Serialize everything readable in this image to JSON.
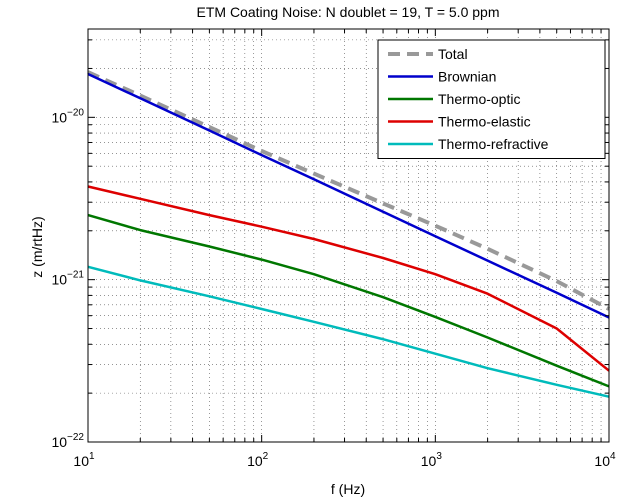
{
  "chart_data": {
    "type": "line",
    "title": "ETM Coating Noise: N doublet = 19, T = 5.0 ppm",
    "xlabel": "f (Hz)",
    "ylabel": "z (m/rtHz)",
    "xscale": "log",
    "yscale": "log",
    "xlim": [
      10,
      10000
    ],
    "ylim": [
      1e-22,
      3.5e-20
    ],
    "grid": true,
    "legend_position": "top-right",
    "x_ticks": [
      {
        "value": 10,
        "base": "10",
        "exp": "1"
      },
      {
        "value": 100,
        "base": "10",
        "exp": "2"
      },
      {
        "value": 1000,
        "base": "10",
        "exp": "3"
      },
      {
        "value": 10000,
        "base": "10",
        "exp": "4"
      }
    ],
    "y_ticks": [
      {
        "value": 1e-22,
        "base": "10",
        "exp": "−22"
      },
      {
        "value": 1e-21,
        "base": "10",
        "exp": "−21"
      },
      {
        "value": 1e-20,
        "base": "10",
        "exp": "−20"
      }
    ],
    "x": [
      10,
      20,
      50,
      100,
      200,
      500,
      1000,
      2000,
      5000,
      10000
    ],
    "series": [
      {
        "name": "Total",
        "color": "#999999",
        "dashed": true,
        "values": [
          1.9e-20,
          1.36e-20,
          8.7e-21,
          6.2e-21,
          4.5e-21,
          2.95e-21,
          2.15e-21,
          1.55e-21,
          9.8e-22,
          6.6e-22
        ]
      },
      {
        "name": "Brownian",
        "color": "#0000cc",
        "dashed": false,
        "values": [
          1.85e-20,
          1.31e-20,
          8.3e-21,
          5.85e-21,
          4.15e-21,
          2.62e-21,
          1.85e-21,
          1.31e-21,
          8.3e-22,
          5.85e-22
        ]
      },
      {
        "name": "Thermo-optic",
        "color": "#007700",
        "dashed": false,
        "values": [
          2.5e-21,
          2.02e-21,
          1.6e-21,
          1.33e-21,
          1.08e-21,
          7.8e-22,
          5.9e-22,
          4.4e-22,
          2.95e-22,
          2.2e-22
        ]
      },
      {
        "name": "Thermo-elastic",
        "color": "#dd0000",
        "dashed": false,
        "values": [
          3.75e-21,
          3.15e-21,
          2.5e-21,
          2.12e-21,
          1.78e-21,
          1.36e-21,
          1.08e-21,
          8.2e-22,
          5e-22,
          2.75e-22
        ]
      },
      {
        "name": "Thermo-refractive",
        "color": "#00bbbb",
        "dashed": false,
        "values": [
          1.2e-21,
          9.9e-22,
          7.9e-22,
          6.6e-22,
          5.5e-22,
          4.3e-22,
          3.5e-22,
          2.85e-22,
          2.25e-22,
          1.9e-22
        ]
      }
    ]
  }
}
